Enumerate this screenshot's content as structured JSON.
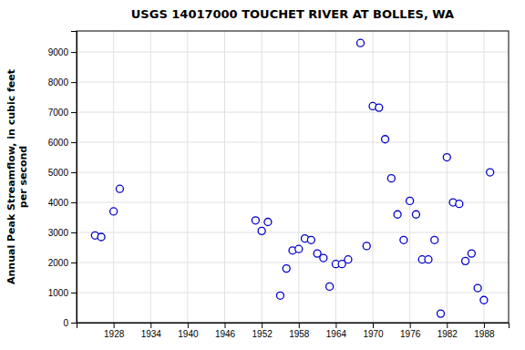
{
  "chart_data": {
    "type": "scatter",
    "title": "USGS 14017000 TOUCHET RIVER AT BOLLES, WA",
    "ylabel": "Annual Peak Streamflow, in cubic feet\nper second",
    "x": [
      1925,
      1926,
      1928,
      1929,
      1951,
      1952,
      1953,
      1955,
      1956,
      1957,
      1958,
      1959,
      1960,
      1961,
      1962,
      1963,
      1964,
      1965,
      1966,
      1968,
      1969,
      1970,
      1971,
      1972,
      1973,
      1974,
      1975,
      1976,
      1977,
      1978,
      1979,
      1980,
      1981,
      1982,
      1983,
      1984,
      1985,
      1986,
      1987,
      1988,
      1989
    ],
    "values": [
      2900,
      2850,
      3700,
      4450,
      3400,
      3050,
      3350,
      900,
      1800,
      2400,
      2450,
      2800,
      2750,
      2300,
      2150,
      1200,
      1950,
      1950,
      2100,
      9300,
      2550,
      7200,
      7150,
      6100,
      4800,
      3600,
      2750,
      4050,
      3600,
      2100,
      2100,
      2750,
      300,
      5500,
      4000,
      3950,
      2050,
      2300,
      1150,
      750,
      5000
    ],
    "xlim": [
      1922,
      1992
    ],
    "ylim": [
      0,
      9700
    ],
    "xticks": [
      1928,
      1934,
      1940,
      1946,
      1952,
      1958,
      1964,
      1970,
      1976,
      1982,
      1988
    ],
    "yticks": [
      0,
      1000,
      2000,
      3000,
      4000,
      5000,
      6000,
      7000,
      8000,
      9000
    ],
    "color": "#0000cc",
    "marker": "circle",
    "grid": true
  }
}
